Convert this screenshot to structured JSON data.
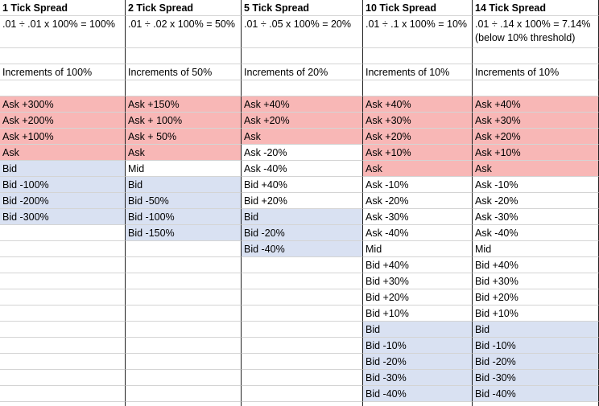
{
  "colors": {
    "ask": "#f8b7b6",
    "bid": "#d9e1f2"
  },
  "columns": [
    {
      "header": "1 Tick Spread",
      "formula": ".01 ÷ .01 x 100% = 100%",
      "increments": "Increments of 100%",
      "cells": [
        {
          "text": "Ask +300%",
          "fill": "ask"
        },
        {
          "text": "Ask +200%",
          "fill": "ask"
        },
        {
          "text": "Ask +100%",
          "fill": "ask"
        },
        {
          "text": "Ask",
          "fill": "ask"
        },
        {
          "text": "Bid",
          "fill": "bid"
        },
        {
          "text": "Bid -100%",
          "fill": "bid"
        },
        {
          "text": "Bid -200%",
          "fill": "bid"
        },
        {
          "text": "Bid -300%",
          "fill": "bid"
        }
      ]
    },
    {
      "header": "2 Tick Spread",
      "formula": ".01 ÷ .02 x 100% = 50%",
      "increments": "Increments of 50%",
      "cells": [
        {
          "text": "Ask +150%",
          "fill": "ask"
        },
        {
          "text": "Ask + 100%",
          "fill": "ask"
        },
        {
          "text": "Ask + 50%",
          "fill": "ask"
        },
        {
          "text": "Ask",
          "fill": "ask"
        },
        {
          "text": "Mid"
        },
        {
          "text": "Bid",
          "fill": "bid"
        },
        {
          "text": "Bid -50%",
          "fill": "bid"
        },
        {
          "text": "Bid -100%",
          "fill": "bid"
        },
        {
          "text": "Bid -150%",
          "fill": "bid"
        }
      ]
    },
    {
      "header": "5 Tick Spread",
      "formula": ".01 ÷ .05 x 100% = 20%",
      "increments": "Increments of 20%",
      "cells": [
        {
          "text": "Ask +40%",
          "fill": "ask"
        },
        {
          "text": "Ask +20%",
          "fill": "ask"
        },
        {
          "text": "Ask",
          "fill": "ask"
        },
        {
          "text": "Ask -20%"
        },
        {
          "text": "Ask -40%"
        },
        {
          "text": "Bid +40%"
        },
        {
          "text": "Bid +20%"
        },
        {
          "text": "Bid",
          "fill": "bid"
        },
        {
          "text": "Bid -20%",
          "fill": "bid"
        },
        {
          "text": "Bid -40%",
          "fill": "bid"
        }
      ]
    },
    {
      "header": "10 Tick Spread",
      "formula": ".01 ÷ .1 x 100% = 10%",
      "increments": "Increments of 10%",
      "cells": [
        {
          "text": "Ask +40%",
          "fill": "ask"
        },
        {
          "text": "Ask +30%",
          "fill": "ask"
        },
        {
          "text": "Ask +20%",
          "fill": "ask"
        },
        {
          "text": "Ask +10%",
          "fill": "ask"
        },
        {
          "text": "Ask",
          "fill": "ask"
        },
        {
          "text": "Ask -10%"
        },
        {
          "text": "Ask -20%"
        },
        {
          "text": "Ask -30%"
        },
        {
          "text": "Ask -40%"
        },
        {
          "text": "Mid"
        },
        {
          "text": "Bid +40%"
        },
        {
          "text": "Bid +30%"
        },
        {
          "text": "Bid +20%"
        },
        {
          "text": "Bid +10%"
        },
        {
          "text": "Bid",
          "fill": "bid"
        },
        {
          "text": "Bid -10%",
          "fill": "bid"
        },
        {
          "text": "Bid -20%",
          "fill": "bid"
        },
        {
          "text": "Bid -30%",
          "fill": "bid"
        },
        {
          "text": "Bid -40%",
          "fill": "bid"
        }
      ]
    },
    {
      "header": "14 Tick Spread",
      "formula": ".01 ÷ .14 x 100% = 7.14%",
      "note": "(below 10% threshold)",
      "increments": "Increments of 10%",
      "cells": [
        {
          "text": "Ask +40%",
          "fill": "ask"
        },
        {
          "text": "Ask +30%",
          "fill": "ask"
        },
        {
          "text": "Ask +20%",
          "fill": "ask"
        },
        {
          "text": "Ask +10%",
          "fill": "ask"
        },
        {
          "text": "Ask",
          "fill": "ask"
        },
        {
          "text": "Ask -10%"
        },
        {
          "text": "Ask -20%"
        },
        {
          "text": "Ask -30%"
        },
        {
          "text": "Ask -40%"
        },
        {
          "text": "Mid"
        },
        {
          "text": "Bid +40%"
        },
        {
          "text": "Bid +30%"
        },
        {
          "text": "Bid +20%"
        },
        {
          "text": "Bid +10%"
        },
        {
          "text": "Bid",
          "fill": "bid"
        },
        {
          "text": "Bid -10%",
          "fill": "bid"
        },
        {
          "text": "Bid -20%",
          "fill": "bid"
        },
        {
          "text": "Bid -30%",
          "fill": "bid"
        },
        {
          "text": "Bid -40%",
          "fill": "bid"
        }
      ]
    }
  ]
}
